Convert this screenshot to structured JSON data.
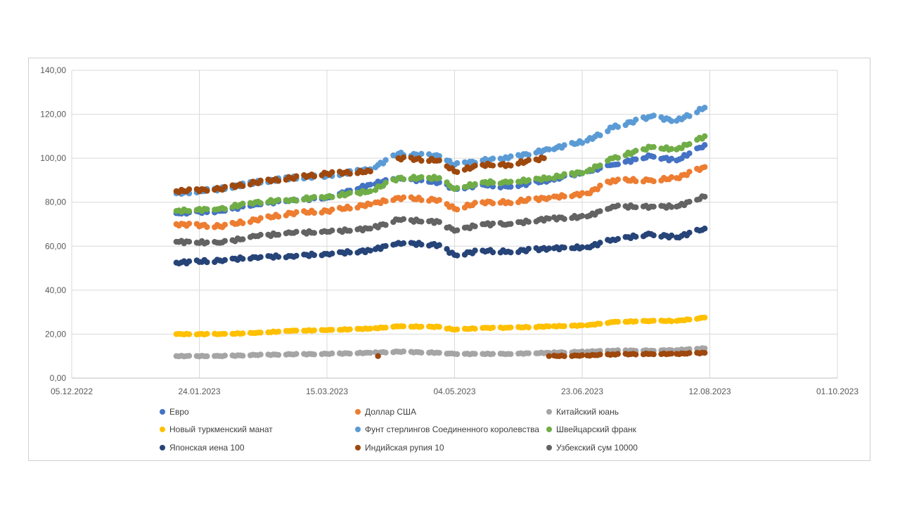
{
  "chart_data": {
    "type": "scatter",
    "title": "",
    "xlabel": "",
    "ylabel": "",
    "ylim": [
      0,
      140
    ],
    "xlim": [
      "2022-12-05",
      "2023-10-01"
    ],
    "x_ticks": [
      "05.12.2022",
      "24.01.2023",
      "15.03.2023",
      "04.05.2023",
      "23.06.2023",
      "12.08.2023",
      "01.10.2023"
    ],
    "y_ticks": [
      "0,00",
      "20,00",
      "40,00",
      "60,00",
      "80,00",
      "100,00",
      "120,00",
      "140,00"
    ],
    "grid": true,
    "legend_position": "bottom",
    "series": [
      {
        "name": "Евро",
        "color": "#4472C4",
        "points": [
          [
            "2023-01-15",
            75
          ],
          [
            "2023-02-01",
            76
          ],
          [
            "2023-02-15",
            79
          ],
          [
            "2023-03-01",
            81
          ],
          [
            "2023-03-15",
            82
          ],
          [
            "2023-04-01",
            88
          ],
          [
            "2023-04-12",
            91
          ],
          [
            "2023-04-28",
            89
          ],
          [
            "2023-05-04",
            86
          ],
          [
            "2023-05-15",
            88
          ],
          [
            "2023-05-25",
            87
          ],
          [
            "2023-06-10",
            90
          ],
          [
            "2023-06-25",
            94
          ],
          [
            "2023-07-05",
            97
          ],
          [
            "2023-07-20",
            101
          ],
          [
            "2023-07-30",
            99
          ],
          [
            "2023-08-10",
            106
          ]
        ]
      },
      {
        "name": "Доллар США",
        "color": "#ED7D31",
        "points": [
          [
            "2023-01-15",
            70
          ],
          [
            "2023-02-01",
            69
          ],
          [
            "2023-02-15",
            72
          ],
          [
            "2023-03-01",
            75
          ],
          [
            "2023-03-15",
            76
          ],
          [
            "2023-04-01",
            79
          ],
          [
            "2023-04-12",
            82
          ],
          [
            "2023-04-28",
            81
          ],
          [
            "2023-05-04",
            77
          ],
          [
            "2023-05-15",
            80
          ],
          [
            "2023-05-25",
            80
          ],
          [
            "2023-06-10",
            82
          ],
          [
            "2023-06-25",
            84
          ],
          [
            "2023-07-05",
            90
          ],
          [
            "2023-07-20",
            90
          ],
          [
            "2023-07-30",
            91
          ],
          [
            "2023-08-10",
            96
          ]
        ]
      },
      {
        "name": "Китайский юань",
        "color": "#A5A5A5",
        "points": [
          [
            "2023-01-15",
            10
          ],
          [
            "2023-02-01",
            10
          ],
          [
            "2023-02-15",
            10.5
          ],
          [
            "2023-03-01",
            10.8
          ],
          [
            "2023-03-15",
            11
          ],
          [
            "2023-04-01",
            11.5
          ],
          [
            "2023-04-12",
            12
          ],
          [
            "2023-04-28",
            11.5
          ],
          [
            "2023-05-04",
            11
          ],
          [
            "2023-05-15",
            11
          ],
          [
            "2023-05-25",
            11
          ],
          [
            "2023-06-10",
            11.5
          ],
          [
            "2023-06-25",
            12
          ],
          [
            "2023-07-05",
            12.5
          ],
          [
            "2023-07-20",
            12.5
          ],
          [
            "2023-07-30",
            12.7
          ],
          [
            "2023-08-10",
            13.5
          ]
        ]
      },
      {
        "name": "Новый туркменский манат",
        "color": "#FFC000",
        "points": [
          [
            "2023-01-15",
            20
          ],
          [
            "2023-02-01",
            20
          ],
          [
            "2023-02-15",
            20.5
          ],
          [
            "2023-03-01",
            21.5
          ],
          [
            "2023-03-15",
            21.8
          ],
          [
            "2023-04-01",
            22.5
          ],
          [
            "2023-04-12",
            23.5
          ],
          [
            "2023-04-28",
            23.3
          ],
          [
            "2023-05-04",
            22
          ],
          [
            "2023-05-15",
            22.8
          ],
          [
            "2023-05-25",
            22.9
          ],
          [
            "2023-06-10",
            23.5
          ],
          [
            "2023-06-25",
            24
          ],
          [
            "2023-07-05",
            25.5
          ],
          [
            "2023-07-20",
            26
          ],
          [
            "2023-07-30",
            26
          ],
          [
            "2023-08-10",
            27.5
          ]
        ]
      },
      {
        "name": "Фунт стерлингов Соединенного королевства",
        "color": "#5B9BD5",
        "points": [
          [
            "2023-01-15",
            84
          ],
          [
            "2023-02-01",
            86
          ],
          [
            "2023-02-15",
            89
          ],
          [
            "2023-03-01",
            91
          ],
          [
            "2023-03-15",
            92
          ],
          [
            "2023-04-01",
            95
          ],
          [
            "2023-04-12",
            102
          ],
          [
            "2023-04-28",
            101
          ],
          [
            "2023-05-04",
            97
          ],
          [
            "2023-05-15",
            99
          ],
          [
            "2023-05-25",
            100
          ],
          [
            "2023-06-10",
            104
          ],
          [
            "2023-06-25",
            108
          ],
          [
            "2023-07-05",
            114
          ],
          [
            "2023-07-20",
            119
          ],
          [
            "2023-07-30",
            117
          ],
          [
            "2023-08-10",
            123
          ]
        ]
      },
      {
        "name": "Швейцарский франк",
        "color": "#70AD47",
        "points": [
          [
            "2023-01-15",
            76
          ],
          [
            "2023-02-01",
            77
          ],
          [
            "2023-02-15",
            80
          ],
          [
            "2023-03-01",
            81
          ],
          [
            "2023-03-15",
            82.5
          ],
          [
            "2023-04-01",
            85
          ],
          [
            "2023-04-12",
            91
          ],
          [
            "2023-04-28",
            91
          ],
          [
            "2023-05-04",
            86
          ],
          [
            "2023-05-15",
            89
          ],
          [
            "2023-05-25",
            89
          ],
          [
            "2023-06-10",
            91
          ],
          [
            "2023-06-25",
            94
          ],
          [
            "2023-07-05",
            100
          ],
          [
            "2023-07-20",
            105
          ],
          [
            "2023-07-30",
            104
          ],
          [
            "2023-08-10",
            110
          ]
        ]
      },
      {
        "name": "Японская иена 100",
        "color": "#264478",
        "points": [
          [
            "2023-01-15",
            52.5
          ],
          [
            "2023-02-01",
            53.5
          ],
          [
            "2023-02-15",
            55
          ],
          [
            "2023-03-01",
            55.5
          ],
          [
            "2023-03-15",
            56.5
          ],
          [
            "2023-04-01",
            58
          ],
          [
            "2023-04-12",
            61.5
          ],
          [
            "2023-04-28",
            60.5
          ],
          [
            "2023-05-04",
            56
          ],
          [
            "2023-05-15",
            58
          ],
          [
            "2023-05-25",
            57.5
          ],
          [
            "2023-06-10",
            59
          ],
          [
            "2023-06-25",
            59.5
          ],
          [
            "2023-07-05",
            63
          ],
          [
            "2023-07-20",
            65.5
          ],
          [
            "2023-07-30",
            64
          ],
          [
            "2023-08-10",
            68
          ]
        ]
      },
      {
        "name": "Индийская рупия 10",
        "color": "#9E480E",
        "points": [
          [
            "2023-01-15",
            85
          ],
          [
            "2023-02-01",
            86
          ],
          [
            "2023-02-15",
            89
          ],
          [
            "2023-03-01",
            91
          ],
          [
            "2023-03-15",
            93
          ],
          [
            "2023-04-01",
            94
          ],
          [
            "2023-04-04",
            10
          ],
          [
            "2023-04-12",
            100
          ],
          [
            "2023-04-28",
            99
          ],
          [
            "2023-05-04",
            94
          ],
          [
            "2023-05-15",
            97
          ],
          [
            "2023-05-25",
            97
          ],
          [
            "2023-06-08",
            100
          ],
          [
            "2023-06-10",
            10
          ],
          [
            "2023-06-25",
            10.3
          ],
          [
            "2023-07-05",
            10.8
          ],
          [
            "2023-07-20",
            11
          ],
          [
            "2023-07-30",
            11
          ],
          [
            "2023-08-10",
            11.5
          ]
        ]
      },
      {
        "name": "Узбекский сум 10000",
        "color": "#636363",
        "points": [
          [
            "2023-01-15",
            62
          ],
          [
            "2023-02-01",
            61.5
          ],
          [
            "2023-02-15",
            64.5
          ],
          [
            "2023-03-01",
            66
          ],
          [
            "2023-03-15",
            66.5
          ],
          [
            "2023-04-01",
            68
          ],
          [
            "2023-04-12",
            72
          ],
          [
            "2023-04-28",
            71
          ],
          [
            "2023-05-04",
            67
          ],
          [
            "2023-05-15",
            70
          ],
          [
            "2023-05-25",
            70
          ],
          [
            "2023-06-10",
            72.5
          ],
          [
            "2023-06-25",
            73.5
          ],
          [
            "2023-07-05",
            78
          ],
          [
            "2023-07-20",
            78
          ],
          [
            "2023-07-30",
            78
          ],
          [
            "2023-08-10",
            82.5
          ]
        ]
      }
    ]
  }
}
